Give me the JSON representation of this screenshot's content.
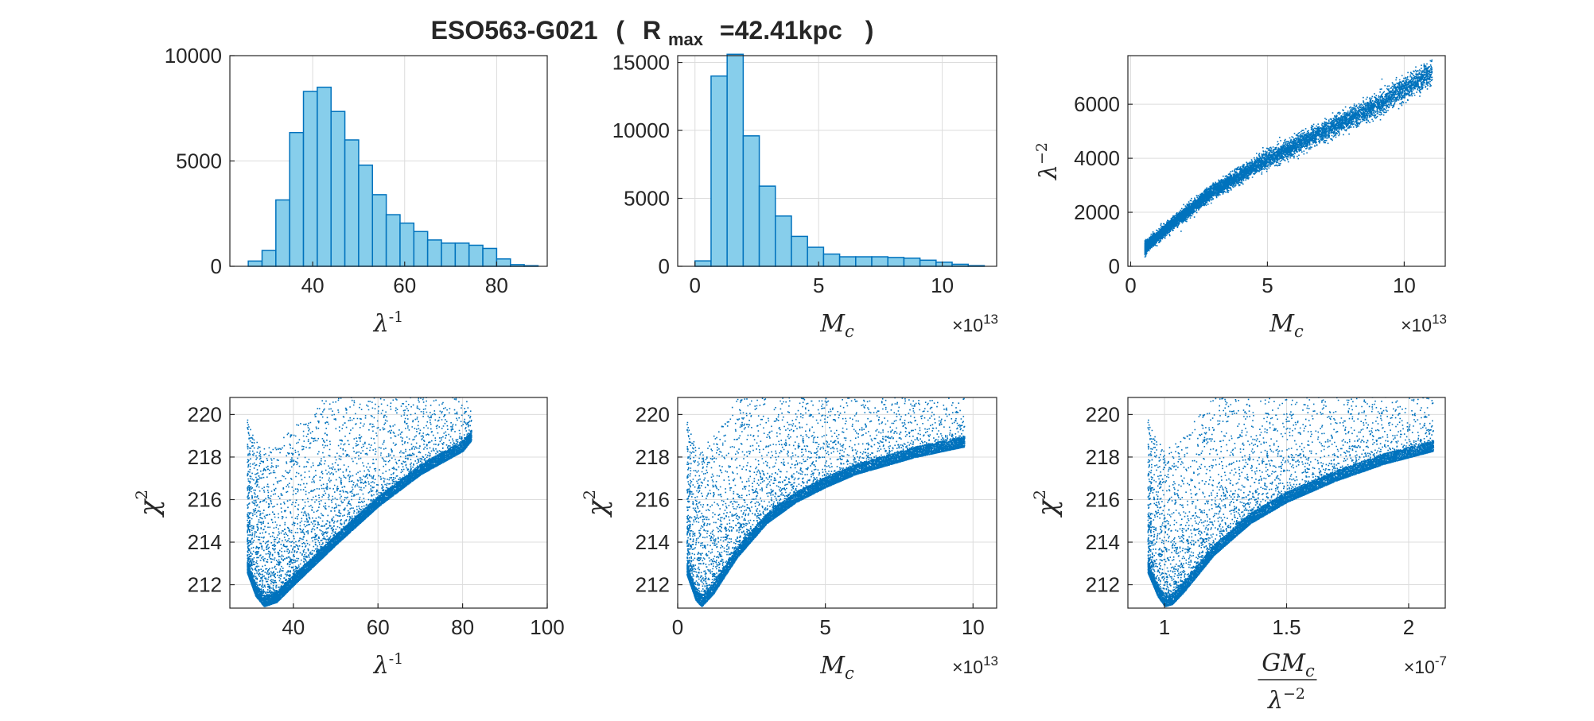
{
  "figure": {
    "title_name": "ESO563-G021",
    "title_paren_open": "(",
    "title_rmax_base": "R",
    "title_rmax_sub": "max",
    "title_rmax_value": "=42.41kpc",
    "title_paren_close": ")"
  },
  "colors": {
    "bar_fill": "#87ceeb",
    "bar_edge": "#0072bd",
    "scatter": "#0072bd"
  },
  "chart_data": [
    {
      "id": "hist-inv-lambda",
      "type": "bar",
      "xlabel": "λ⁻¹",
      "ylabel": "",
      "xlim": [
        22,
        91
      ],
      "ylim": [
        0,
        10000
      ],
      "xticks": [
        40,
        60,
        80
      ],
      "yticks": [
        0,
        5000,
        10000
      ],
      "bin_edges": [
        26,
        29,
        32,
        35,
        38,
        41,
        44,
        47,
        50,
        53,
        56,
        59,
        62,
        65,
        68,
        71,
        74,
        77,
        80,
        83,
        86,
        89
      ],
      "values": [
        250,
        750,
        3150,
        6350,
        8300,
        8500,
        7350,
        6000,
        4800,
        3400,
        2450,
        2050,
        1650,
        1250,
        1100,
        1100,
        1000,
        850,
        350,
        80,
        30
      ],
      "grid": true
    },
    {
      "id": "hist-mc",
      "type": "bar",
      "xlabel": "M_c",
      "x_exponent": "×10^13",
      "ylim": [
        0,
        15500
      ],
      "xlim": [
        -0.7,
        12.2
      ],
      "xticks": [
        0,
        5,
        10
      ],
      "yticks": [
        0,
        5000,
        10000,
        15000
      ],
      "bin_edges": [
        0,
        0.65,
        1.3,
        1.95,
        2.6,
        3.25,
        3.9,
        4.55,
        5.2,
        5.85,
        6.5,
        7.15,
        7.8,
        8.45,
        9.1,
        9.75,
        10.4,
        11.05,
        11.7
      ],
      "values": [
        400,
        14000,
        15600,
        9600,
        5900,
        3700,
        2200,
        1400,
        900,
        700,
        700,
        700,
        650,
        600,
        450,
        300,
        150,
        50
      ],
      "grid": true
    },
    {
      "id": "scatter-lambda2-mc",
      "type": "scatter",
      "xlabel": "M_c",
      "x_exponent": "×10^13",
      "ylabel": "λ⁻²",
      "xlim": [
        -0.1,
        11.5
      ],
      "ylim": [
        0,
        7800
      ],
      "xticks": [
        0,
        5,
        10
      ],
      "yticks": [
        0,
        2000,
        4000,
        6000
      ],
      "trend": {
        "x": [
          0.5,
          1.5,
          3,
          5,
          7,
          9,
          11
        ],
        "y": [
          700,
          1600,
          2800,
          4000,
          5000,
          6000,
          7200
        ]
      },
      "grid": true
    },
    {
      "id": "scatter-chi2-inv-lambda",
      "type": "scatter",
      "xlabel": "λ⁻¹",
      "ylabel": "χ²",
      "xlim": [
        25,
        100
      ],
      "ylim": [
        210.9,
        220.8
      ],
      "xticks": [
        40,
        60,
        80,
        100
      ],
      "yticks": [
        212,
        214,
        216,
        218,
        220
      ],
      "lower_edge": {
        "x": [
          29,
          31,
          33,
          36,
          40,
          50,
          60,
          70,
          80,
          82
        ],
        "y": [
          212.6,
          211.5,
          211.0,
          211.2,
          212.0,
          213.9,
          215.7,
          217.2,
          218.3,
          218.8
        ]
      },
      "grid": true
    },
    {
      "id": "scatter-chi2-mc",
      "type": "scatter",
      "xlabel": "M_c",
      "x_exponent": "×10^13",
      "ylabel": "χ²",
      "xlim": [
        0,
        10.8
      ],
      "ylim": [
        210.9,
        220.8
      ],
      "xticks": [
        0,
        5,
        10
      ],
      "yticks": [
        212,
        214,
        216,
        218,
        220
      ],
      "lower_edge": {
        "x": [
          0.3,
          0.6,
          0.8,
          1.2,
          2,
          3,
          4,
          5,
          6,
          7,
          8,
          9,
          9.7
        ],
        "y": [
          212.5,
          211.3,
          211.0,
          211.6,
          213.3,
          214.9,
          215.9,
          216.6,
          217.2,
          217.6,
          218.0,
          218.3,
          218.5
        ]
      },
      "grid": true
    },
    {
      "id": "scatter-chi2-gmc",
      "type": "scatter",
      "xlabel": "GM_c / λ⁻²",
      "x_exponent": "×10^-7",
      "ylabel": "χ²",
      "xlim": [
        0.85,
        2.15
      ],
      "ylim": [
        210.9,
        220.8
      ],
      "xticks": [
        1,
        1.5,
        2
      ],
      "yticks": [
        212,
        214,
        216,
        218,
        220
      ],
      "lower_edge": {
        "x": [
          0.93,
          0.97,
          1.0,
          1.03,
          1.08,
          1.2,
          1.35,
          1.5,
          1.7,
          1.9,
          2.1
        ],
        "y": [
          212.6,
          211.5,
          211.0,
          211.1,
          211.7,
          213.4,
          214.9,
          215.9,
          216.9,
          217.7,
          218.3
        ]
      },
      "grid": true
    }
  ]
}
